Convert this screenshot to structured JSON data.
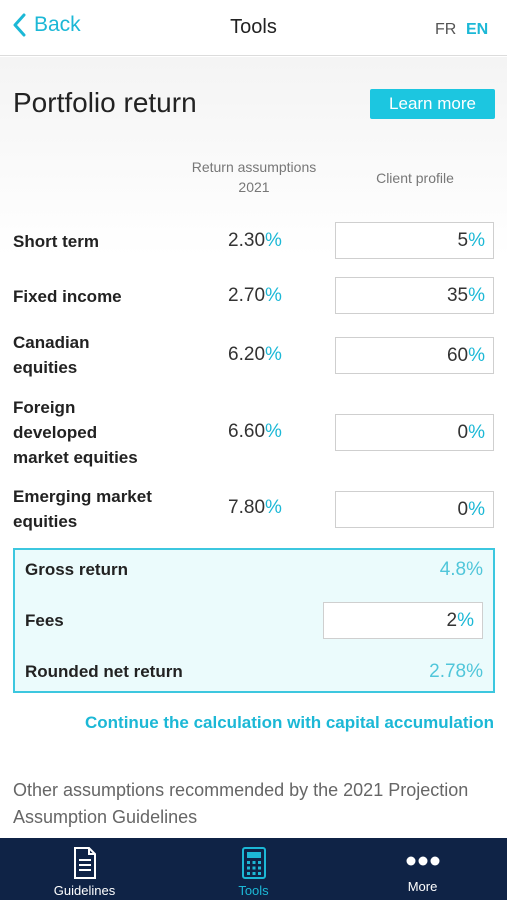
{
  "nav": {
    "back_label": "Back",
    "title": "Tools",
    "lang_fr": "FR",
    "lang_en": "EN"
  },
  "page": {
    "title": "Portfolio return",
    "learn_more": "Learn more",
    "col_assumptions_line1": "Return assumptions",
    "col_assumptions_line2": "2021",
    "col_client": "Client profile"
  },
  "rows": [
    {
      "label_lines": [
        "Short term"
      ],
      "assumption": "2.30",
      "client": "5"
    },
    {
      "label_lines": [
        "Fixed income"
      ],
      "assumption": "2.70",
      "client": "35"
    },
    {
      "label_lines": [
        "Canadian",
        "equities"
      ],
      "assumption": "6.20",
      "client": "60"
    },
    {
      "label_lines": [
        "Foreign",
        "developed",
        "market equities"
      ],
      "assumption": "6.60",
      "client": "0"
    },
    {
      "label_lines": [
        "Emerging market",
        "equities"
      ],
      "assumption": "7.80",
      "client": "0"
    }
  ],
  "percent_sign": "%",
  "summary": {
    "gross_label": "Gross return",
    "gross_value": "4.8%",
    "fees_label": "Fees",
    "fees_value": "2",
    "net_label": "Rounded net return",
    "net_value": "2.78%"
  },
  "continue_link": "Continue the calculation with capital accumulation",
  "other_text": "Other assumptions recommended by the 2021 Projection Assumption Guidelines",
  "tabs": [
    {
      "label": "Guidelines",
      "icon": "document-icon",
      "active": false
    },
    {
      "label": "Tools",
      "icon": "calculator-icon",
      "active": true
    },
    {
      "label": "More",
      "icon": "more-dots-icon",
      "active": false
    }
  ],
  "colors": {
    "accent": "#1cb8d6",
    "tabbar": "#0f2346",
    "summary_bg": "#ebfbfc"
  }
}
